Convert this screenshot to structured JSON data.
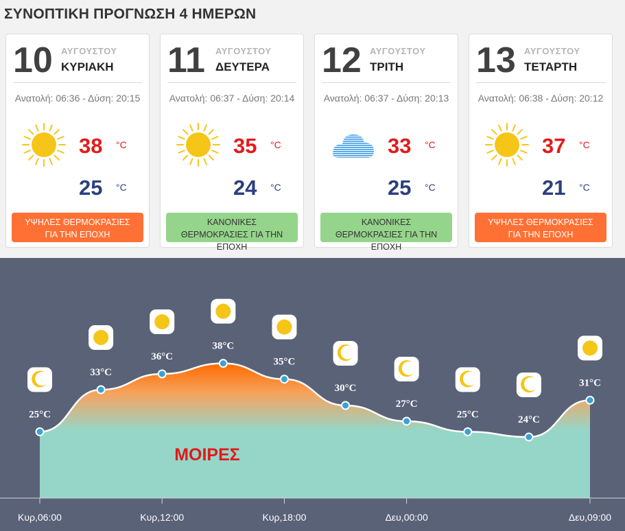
{
  "page": {
    "title": "ΣΥΝΟΠΤΙΚΗ ΠΡΟΓΝΩΣΗ 4 ΗΜΕΡΩΝ"
  },
  "colors": {
    "hot_badge": "#ff7034",
    "normal_badge": "#95d58b",
    "max_temp": "#e31b1b",
    "min_temp": "#2c3f7e",
    "graph_bg": "#5a6278",
    "area_fill": "#96d6c8"
  },
  "days": [
    {
      "day": "10",
      "month": "ΑΥΓΟΥΣΤΟΥ",
      "weekday": "ΚΥΡΙΑΚΗ",
      "sun": "Ανατολή: 06:36 - Δύση: 20:15",
      "icon": "sun-icon",
      "max": "38",
      "min": "25",
      "unit": "°C",
      "badge": "ΥΨΗΛΕΣ ΘΕΡΜΟΚΡΑΣΙΕΣ ΓΙΑ ΤΗΝ ΕΠΟΧΗ",
      "badge_type": "hot"
    },
    {
      "day": "11",
      "month": "ΑΥΓΟΥΣΤΟΥ",
      "weekday": "ΔΕΥΤΕΡΑ",
      "sun": "Ανατολή: 06:37 - Δύση: 20:14",
      "icon": "sun-icon",
      "max": "35",
      "min": "24",
      "unit": "°C",
      "badge": "ΚΑΝΟΝΙΚΕΣ ΘΕΡΜΟΚΡΑΣΙΕΣ ΓΙΑ ΤΗΝ ΕΠΟΧΗ",
      "badge_type": "normal"
    },
    {
      "day": "12",
      "month": "ΑΥΓΟΥΣΤΟΥ",
      "weekday": "ΤΡΙΤΗ",
      "sun": "Ανατολή: 06:37 - Δύση: 20:13",
      "icon": "haze-icon",
      "max": "33",
      "min": "25",
      "unit": "°C",
      "badge": "ΚΑΝΟΝΙΚΕΣ ΘΕΡΜΟΚΡΑΣΙΕΣ ΓΙΑ ΤΗΝ ΕΠΟΧΗ",
      "badge_type": "normal"
    },
    {
      "day": "13",
      "month": "ΑΥΓΟΥΣΤΟΥ",
      "weekday": "ΤΕΤΑΡΤΗ",
      "sun": "Ανατολή: 06:38 - Δύση: 20:12",
      "icon": "sun-icon",
      "max": "37",
      "min": "21",
      "unit": "°C",
      "badge": "ΥΨΗΛΕΣ ΘΕΡΜΟΚΡΑΣΙΕΣ ΓΙΑ ΤΗΝ ΕΠΟΧΗ",
      "badge_type": "hot"
    }
  ],
  "chart_data": {
    "type": "area",
    "ylabel": "ΜΟΙΡΕΣ",
    "temp_unit": "°C",
    "points": [
      {
        "time": "Κυρ 06:00",
        "temp": 25,
        "icon": "moon-icon"
      },
      {
        "time": "Κυρ 09:00",
        "temp": 33,
        "icon": "sun-icon"
      },
      {
        "time": "Κυρ 12:00",
        "temp": 36,
        "icon": "sun-icon"
      },
      {
        "time": "Κυρ 15:00",
        "temp": 38,
        "icon": "sun-icon"
      },
      {
        "time": "Κυρ 18:00",
        "temp": 35,
        "icon": "sun-icon"
      },
      {
        "time": "Κυρ 21:00",
        "temp": 30,
        "icon": "moon-icon"
      },
      {
        "time": "Δευ 00:00",
        "temp": 27,
        "icon": "moon-icon"
      },
      {
        "time": "Δευ 03:00",
        "temp": 25,
        "icon": "moon-icon"
      },
      {
        "time": "Δευ 06:00",
        "temp": 24,
        "icon": "moon-icon"
      },
      {
        "time": "Δευ 09:00",
        "temp": 31,
        "icon": "sun-icon"
      }
    ],
    "x_ticks": [
      {
        "label": "Κυρ,06:00",
        "index": 0
      },
      {
        "label": "Κυρ,12:00",
        "index": 2
      },
      {
        "label": "Κυρ,18:00",
        "index": 4
      },
      {
        "label": "Δευ,00:00",
        "index": 6
      },
      {
        "label": "Δευ,09:00",
        "index": 9
      }
    ]
  }
}
